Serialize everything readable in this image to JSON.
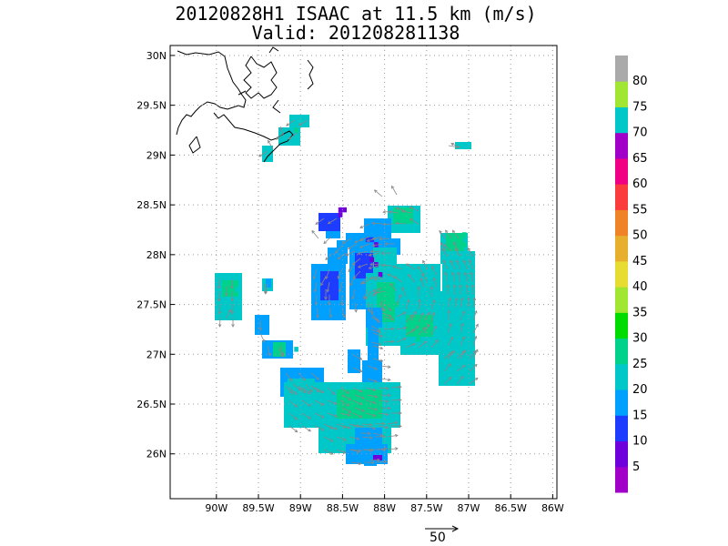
{
  "header": {
    "title": "20120828H1 ISAAC at 11.5 km (m/s)",
    "subtitle": "Valid: 201208281138"
  },
  "chart_data": {
    "type": "heatmap",
    "title": "20120828H1 ISAAC at 11.5 km (m/s)",
    "subtitle": "Valid: 201208281138",
    "x_range": [
      -90.55,
      -85.95
    ],
    "y_range": [
      25.55,
      30.1
    ],
    "x_ticks": [
      {
        "v": -90,
        "label": "90W"
      },
      {
        "v": -89.5,
        "label": "89.5W"
      },
      {
        "v": -89,
        "label": "89W"
      },
      {
        "v": -88.5,
        "label": "88.5W"
      },
      {
        "v": -88,
        "label": "88W"
      },
      {
        "v": -87.5,
        "label": "87.5W"
      },
      {
        "v": -87,
        "label": "87W"
      },
      {
        "v": -86.5,
        "label": "86.5W"
      },
      {
        "v": -86,
        "label": "86W"
      }
    ],
    "y_ticks": [
      {
        "v": 26,
        "label": "26N"
      },
      {
        "v": 26.5,
        "label": "26.5N"
      },
      {
        "v": 27,
        "label": "27N"
      },
      {
        "v": 27.5,
        "label": "27.5N"
      },
      {
        "v": 28,
        "label": "28N"
      },
      {
        "v": 28.5,
        "label": "28.5N"
      },
      {
        "v": 29,
        "label": "29N"
      },
      {
        "v": 29.5,
        "label": "29.5N"
      },
      {
        "v": 30,
        "label": "30N"
      }
    ],
    "grid": true,
    "colorbar": {
      "levels": [
        5,
        10,
        15,
        20,
        25,
        30,
        35,
        40,
        45,
        50,
        55,
        60,
        65,
        70,
        75,
        80
      ],
      "colors": [
        "#a000c8",
        "#6e00dc",
        "#1e3cff",
        "#00a0ff",
        "#00c8c8",
        "#00d28c",
        "#00dc00",
        "#a0e632",
        "#e6dc32",
        "#e6af2d",
        "#f08228",
        "#fa3c3c",
        "#f00082",
        "#a000c8",
        "#00c8c8",
        "#a0e632",
        "#aaaaaa"
      ]
    },
    "vector_scale": {
      "label": "50",
      "value": 50
    },
    "cells": [
      {
        "x": -88.525,
        "y": 28.45,
        "v": 8
      },
      {
        "x": -88.475,
        "y": 28.45,
        "v": 8
      },
      {
        "x": -88.525,
        "y": 28.4,
        "v": 8
      },
      {
        "x": -88.2,
        "y": 28.15,
        "v": 12
      },
      {
        "x": -88.15,
        "y": 28.15,
        "v": 12
      },
      {
        "x": -88.1,
        "y": 28.1,
        "v": 8
      },
      {
        "x": -88.15,
        "y": 27.95,
        "v": 8
      },
      {
        "x": -88.1,
        "y": 27.9,
        "v": 8
      },
      {
        "x": -88.05,
        "y": 27.8,
        "v": 8
      },
      {
        "x": -89.75,
        "y": 27.65,
        "v": 22
      },
      {
        "x": -87.75,
        "y": 28.45,
        "v": 25
      },
      {
        "x": -87.05,
        "y": 28.1,
        "v": 25
      },
      {
        "x": -87.05,
        "y": 28.2,
        "v": 25
      },
      {
        "x": -87.6,
        "y": 27.15,
        "v": 25
      },
      {
        "x": -89.05,
        "y": 27.05,
        "v": 22
      },
      {
        "x": -88.2,
        "y": 26.5,
        "v": 25
      },
      {
        "x": -88.35,
        "y": 26.45,
        "v": 25
      },
      {
        "x": -87.85,
        "y": 27.5,
        "v": 25
      },
      {
        "x": -89.05,
        "y": 29.25,
        "v": 25
      }
    ]
  }
}
